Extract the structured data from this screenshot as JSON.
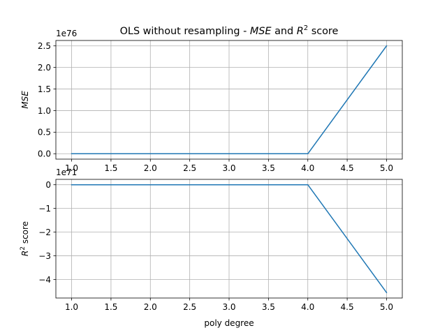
{
  "chart_data": [
    {
      "type": "line",
      "title": "OLS without resampling - MSE and R² score",
      "title_parts": {
        "prefix": "OLS without resampling - ",
        "mse": "MSE",
        "and": " and ",
        "r": "R",
        "sup": "2",
        "suffix": " score"
      },
      "xlabel": "",
      "ylabel": "MSE",
      "offset_text": "1e76",
      "x": [
        1.0,
        2.0,
        3.0,
        4.0,
        5.0
      ],
      "values": [
        0.0,
        0.0,
        0.0,
        0.0,
        2.5
      ],
      "xticks": [
        1.0,
        1.5,
        2.0,
        2.5,
        3.0,
        3.5,
        4.0,
        4.5,
        5.0
      ],
      "xtick_labels": [
        "1.0",
        "1.5",
        "2.0",
        "2.5",
        "3.0",
        "3.5",
        "4.0",
        "4.5",
        "5.0"
      ],
      "yticks": [
        0.0,
        0.5,
        1.0,
        1.5,
        2.0,
        2.5
      ],
      "ytick_labels": [
        "0.0",
        "0.5",
        "1.0",
        "1.5",
        "2.0",
        "2.5"
      ],
      "xlim": [
        0.8,
        5.2
      ],
      "ylim": [
        -0.125,
        2.625
      ],
      "grid": true,
      "color": "#1f77b4"
    },
    {
      "type": "line",
      "title": "",
      "xlabel": "poly degree",
      "ylabel": "R² score",
      "ylabel_parts": {
        "r": "R",
        "sup": "2",
        "suffix": " score"
      },
      "offset_text": "1e71",
      "x": [
        1.0,
        2.0,
        3.0,
        4.0,
        5.0
      ],
      "values": [
        0.0,
        0.0,
        0.0,
        0.0,
        -4.55
      ],
      "xticks": [
        1.0,
        1.5,
        2.0,
        2.5,
        3.0,
        3.5,
        4.0,
        4.5,
        5.0
      ],
      "xtick_labels": [
        "1.0",
        "1.5",
        "2.0",
        "2.5",
        "3.0",
        "3.5",
        "4.0",
        "4.5",
        "5.0"
      ],
      "yticks": [
        -4,
        -3,
        -2,
        -1,
        0
      ],
      "ytick_labels": [
        "−4",
        "−3",
        "−2",
        "−1",
        "0"
      ],
      "xlim": [
        0.8,
        5.2
      ],
      "ylim": [
        -4.78,
        0.227
      ],
      "grid": true,
      "color": "#1f77b4"
    }
  ]
}
